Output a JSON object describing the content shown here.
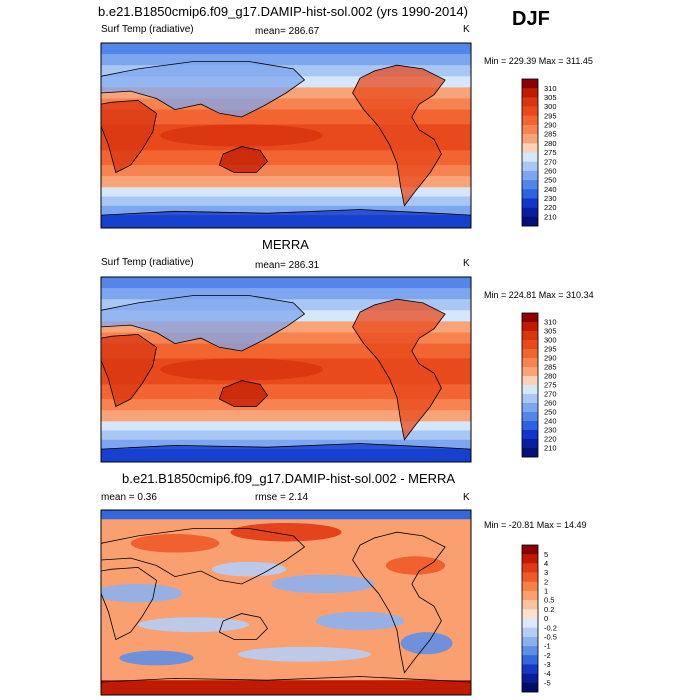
{
  "season": "DJF",
  "chart_data": [
    {
      "type": "heatmap",
      "title": "b.e21.B1850cmip6.f09_g17.DAMIP-hist-sol.002 (yrs 1990-2014)",
      "variable": "Surf Temp (radiative)",
      "mean_label": "mean= 286.67",
      "units": "K",
      "min_max": "Min = 229.39 Max = 311.45",
      "colorbar_levels": [
        "310",
        "305",
        "300",
        "295",
        "290",
        "285",
        "280",
        "275",
        "270",
        "260",
        "250",
        "240",
        "230",
        "220",
        "210"
      ],
      "colors": [
        "#8b0000",
        "#c01a00",
        "#d83510",
        "#e84a1c",
        "#f26430",
        "#f78350",
        "#f9a478",
        "#fbd1b8",
        "#d6e6fb",
        "#a9c7f5",
        "#7ea6ee",
        "#5485e8",
        "#2f62e0",
        "#1236c9",
        "#0a1fa0",
        "#050f75"
      ]
    },
    {
      "type": "heatmap",
      "title": "MERRA",
      "variable": "Surf Temp (radiative)",
      "mean_label": "mean= 286.31",
      "units": "K",
      "min_max": "Min = 224.81 Max = 310.34",
      "colorbar_levels": [
        "310",
        "305",
        "300",
        "295",
        "290",
        "285",
        "280",
        "275",
        "270",
        "260",
        "250",
        "240",
        "230",
        "220",
        "210"
      ],
      "colors": [
        "#8b0000",
        "#c01a00",
        "#d83510",
        "#e84a1c",
        "#f26430",
        "#f78350",
        "#f9a478",
        "#fbd1b8",
        "#d6e6fb",
        "#a9c7f5",
        "#7ea6ee",
        "#5485e8",
        "#2f62e0",
        "#1236c9",
        "#0a1fa0",
        "#050f75"
      ]
    },
    {
      "type": "heatmap",
      "title": "b.e21.B1850cmip6.f09_g17.DAMIP-hist-sol.002 - MERRA",
      "mean_label": "mean = 0.36",
      "rmse_label": "rmse = 2.14",
      "units": "K",
      "min_max": "Min = -20.81 Max = 14.49",
      "colorbar_levels": [
        "5",
        "4",
        "3",
        "2",
        "1",
        "0.5",
        "0.2",
        "0",
        "-0.2",
        "-0.5",
        "-1",
        "-2",
        "-3",
        "-4",
        "-5"
      ],
      "colors": [
        "#8b0000",
        "#c01a00",
        "#e03a14",
        "#f05a28",
        "#f88048",
        "#faa070",
        "#fbc2a0",
        "#fde0d0",
        "#dde9fb",
        "#b5cdf5",
        "#8cb0ee",
        "#5f8ee6",
        "#3466dc",
        "#1638c4",
        "#0a1c96",
        "#040c6a"
      ]
    }
  ]
}
